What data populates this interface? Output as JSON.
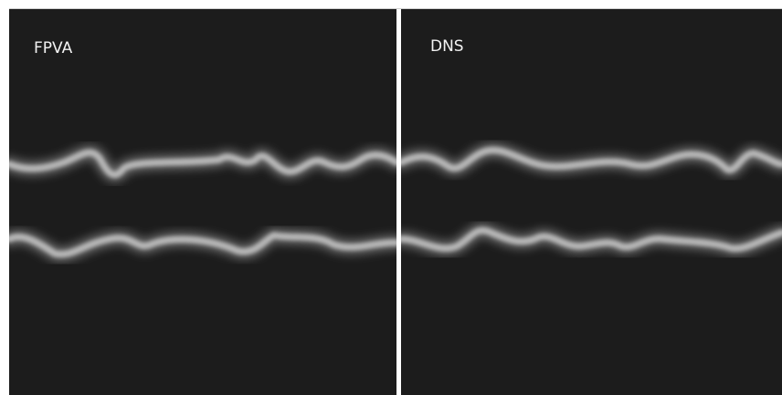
{
  "panels": [
    {
      "label": "FPVA"
    },
    {
      "label": "DNS"
    }
  ]
}
